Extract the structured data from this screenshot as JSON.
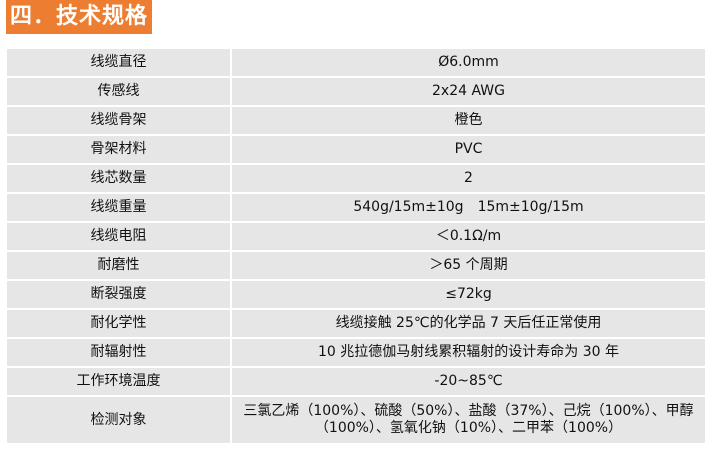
{
  "title": "四．技术规格",
  "rows": [
    {
      "label": "线缆直径",
      "value": "Ø6.0mm"
    },
    {
      "label": "传感线",
      "value": "2x24 AWG"
    },
    {
      "label": "线缆骨架",
      "value": "橙色"
    },
    {
      "label": "骨架材料",
      "value": "PVC"
    },
    {
      "label": "线芯数量",
      "value": "2"
    },
    {
      "label": "线缆重量",
      "value": "540g/15m±10g　15m±10g/15m"
    },
    {
      "label": "线缆电阻",
      "value": "＜0.1Ω/m"
    },
    {
      "label": "耐磨性",
      "value": "＞65 个周期"
    },
    {
      "label": "断裂强度",
      "value": "≤72kg"
    },
    {
      "label": "耐化学性",
      "value": "线缆接触 25℃的化学品 7 天后任正常使用"
    },
    {
      "label": "耐辐射性",
      "value": "10 兆拉德伽马射线累积辐射的设计寿命为 30 年"
    },
    {
      "label": "工作环境温度",
      "value": "-20~85℃"
    },
    {
      "label": "检测对象",
      "value": "三氯乙烯（100%）、硫酸（50%）、盐酸（37%）、己烷（100%）、甲醇（100%）、氢氧化钠（10%）、二甲苯（100%）"
    }
  ]
}
